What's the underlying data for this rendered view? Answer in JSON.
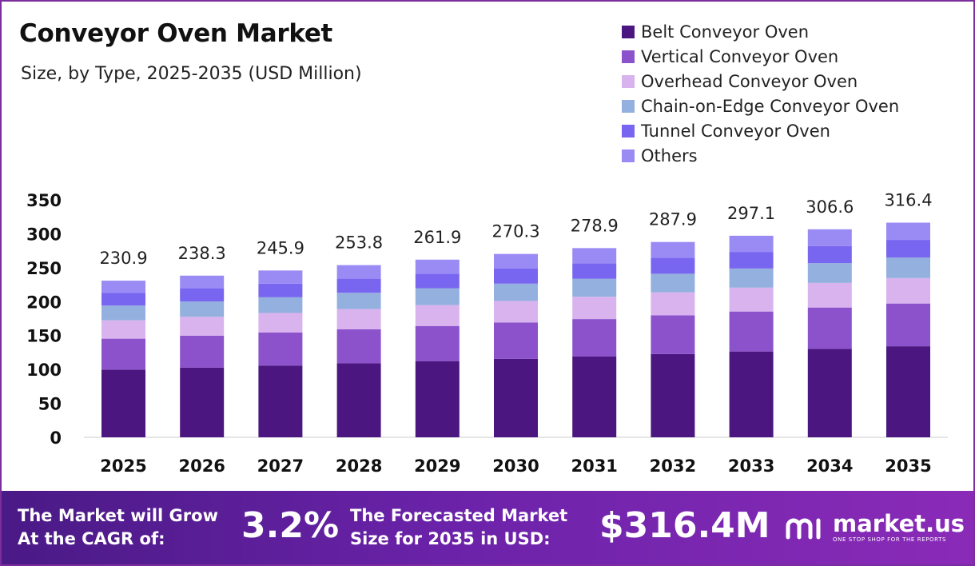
{
  "header": {
    "title": "Conveyor Oven Market",
    "subtitle": "Size, by Type, 2025-2035 (USD Million)"
  },
  "legend": [
    {
      "label": "Belt Conveyor Oven",
      "color": "#4b1680"
    },
    {
      "label": "Vertical Conveyor Oven",
      "color": "#8b52cc"
    },
    {
      "label": "Overhead Conveyor Oven",
      "color": "#d8b3ee"
    },
    {
      "label": "Chain-on-Edge Conveyor Oven",
      "color": "#93b0de"
    },
    {
      "label": "Tunnel Conveyor Oven",
      "color": "#7866f0"
    },
    {
      "label": "Others",
      "color": "#9a8bf4"
    }
  ],
  "chart_data": {
    "type": "bar",
    "stacked": true,
    "title": "Conveyor Oven Market",
    "subtitle": "Size, by Type, 2025-2035 (USD Million)",
    "categories": [
      "2025",
      "2026",
      "2027",
      "2028",
      "2029",
      "2030",
      "2031",
      "2032",
      "2033",
      "2034",
      "2035"
    ],
    "totals": [
      "230.9",
      "238.3",
      "245.9",
      "253.8",
      "261.9",
      "270.3",
      "278.9",
      "287.9",
      "297.1",
      "306.6",
      "316.4"
    ],
    "yticks": [
      "0",
      "50",
      "100",
      "150",
      "200",
      "250",
      "300",
      "350"
    ],
    "ylim": [
      0,
      350
    ],
    "series": [
      {
        "name": "Belt Conveyor Oven",
        "color": "#4b1680",
        "values": [
          99.8,
          102.7,
          105.8,
          109.1,
          112.3,
          115.6,
          119.1,
          122.7,
          126.5,
          130.3,
          134.2
        ]
      },
      {
        "name": "Vertical Conveyor Oven",
        "color": "#8b52cc",
        "values": [
          45.6,
          47.1,
          48.6,
          50.1,
          51.8,
          53.5,
          55.2,
          57.1,
          58.9,
          61.0,
          63.0
        ]
      },
      {
        "name": "Overhead Conveyor Oven",
        "color": "#d8b3ee",
        "values": [
          27.1,
          28.0,
          28.9,
          29.9,
          30.9,
          31.9,
          32.9,
          34.0,
          35.2,
          36.3,
          37.6
        ]
      },
      {
        "name": "Chain-on-Edge Conveyor Oven",
        "color": "#93b0de",
        "values": [
          21.7,
          22.4,
          23.1,
          23.9,
          24.7,
          25.5,
          26.4,
          27.3,
          28.2,
          29.1,
          30.1
        ]
      },
      {
        "name": "Tunnel Conveyor Oven",
        "color": "#7866f0",
        "values": [
          18.9,
          19.5,
          20.1,
          20.8,
          21.5,
          22.2,
          22.9,
          23.7,
          24.5,
          25.3,
          26.1
        ]
      },
      {
        "name": "Others",
        "color": "#9a8bf4",
        "values": [
          17.8,
          18.6,
          19.4,
          20.0,
          20.7,
          21.6,
          22.4,
          23.1,
          23.8,
          24.6,
          25.4
        ]
      }
    ]
  },
  "footer": {
    "cagr_label_line1": "The Market will Grow",
    "cagr_label_line2": "At the CAGR of:",
    "cagr_value": "3.2%",
    "forecast_label_line1": "The Forecasted Market",
    "forecast_label_line2": "Size for 2035 in USD:",
    "forecast_value": "$316.4M",
    "brand_name": "market.us",
    "brand_tagline": "ONE STOP SHOP FOR THE REPORTS"
  }
}
